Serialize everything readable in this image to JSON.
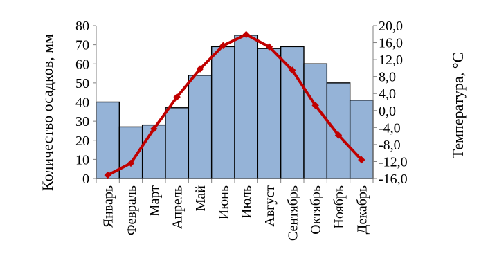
{
  "chart_data": {
    "type": "bar",
    "categories": [
      "Январь",
      "Февраль",
      "Март",
      "Апрель",
      "Май",
      "Июнь",
      "Июль",
      "Август",
      "Сентябрь",
      "Октябрь",
      "Ноябрь",
      "Декабрь"
    ],
    "series": [
      {
        "name": "",
        "type": "bar",
        "axis": "left",
        "values": [
          40,
          27,
          28,
          37,
          54,
          69,
          75,
          68,
          69,
          60,
          50,
          41
        ],
        "color": "#95b3d7"
      },
      {
        "name": "",
        "type": "line",
        "axis": "right",
        "values": [
          -15.2,
          -12.4,
          -4.3,
          3.2,
          9.8,
          15.3,
          17.9,
          15.0,
          9.5,
          1.2,
          -5.8,
          -11.6
        ],
        "color": "#c00000"
      }
    ],
    "ylabel": "Количество осадков, мм",
    "y2label": "Температура, °С",
    "ylim": [
      0,
      80
    ],
    "y2lim": [
      -16,
      20
    ],
    "yticks": [
      "0",
      "10",
      "20",
      "30",
      "40",
      "50",
      "60",
      "70",
      "80"
    ],
    "y2ticks": [
      "-16,0",
      "-12,0",
      "-8,0",
      "-4,0",
      "0,0",
      "4,0",
      "8,0",
      "12,0",
      "16,0",
      "20,0"
    ],
    "grid": false,
    "legend": "none"
  }
}
